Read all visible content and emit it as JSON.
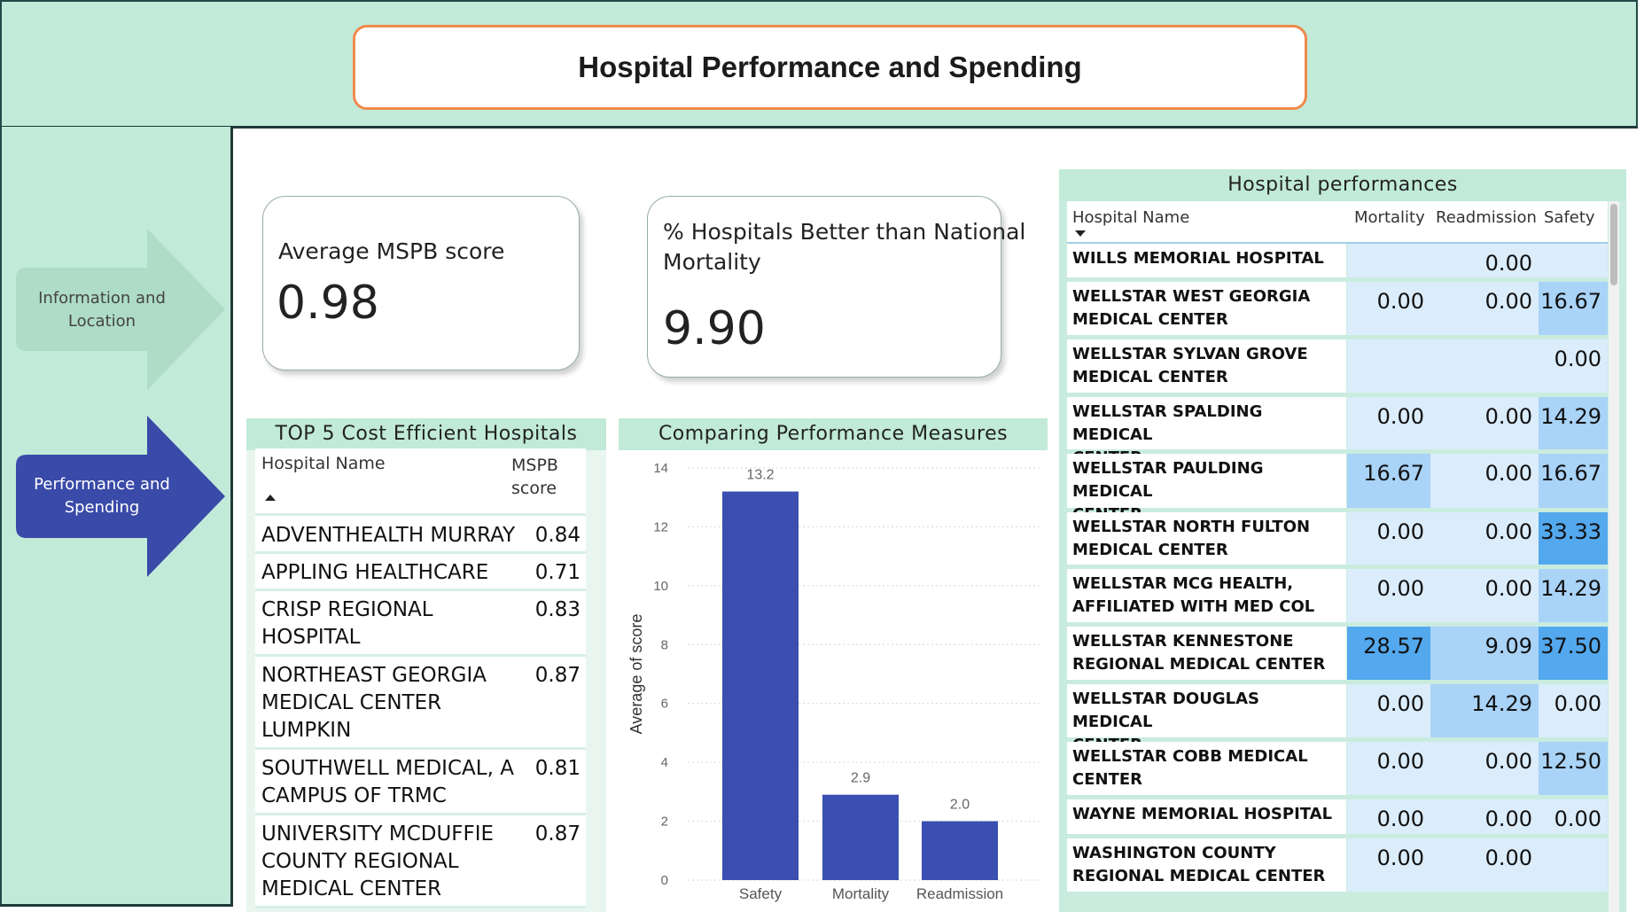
{
  "header": {
    "title": "Hospital Performance and Spending"
  },
  "sidebar": {
    "items": [
      {
        "label_line1": "Information and",
        "label_line2": "Location",
        "active": false
      },
      {
        "label_line1": "Performance and",
        "label_line2": "Spending",
        "active": true
      }
    ]
  },
  "kpis": {
    "mspb": {
      "label": "Average MSPB score",
      "value": "0.98"
    },
    "mortality": {
      "label_line1": "% Hospitals Better than National",
      "label_line2": "Mortality",
      "value": "9.90"
    }
  },
  "top5": {
    "title": "TOP 5 Cost Efficient Hospitals",
    "col_name": "Hospital Name",
    "col_score_line1": "MSPB",
    "col_score_line2": "score",
    "rows": [
      {
        "l1": "ADVENTHEALTH MURRAY",
        "l2": "",
        "l3": "",
        "score": "0.84"
      },
      {
        "l1": "APPLING HEALTHCARE",
        "l2": "",
        "l3": "",
        "score": "0.71"
      },
      {
        "l1": "CRISP REGIONAL",
        "l2": "HOSPITAL",
        "l3": "",
        "score": "0.83"
      },
      {
        "l1": "NORTHEAST GEORGIA",
        "l2": "MEDICAL CENTER",
        "l3": "LUMPKIN",
        "score": "0.87"
      },
      {
        "l1": "SOUTHWELL MEDICAL, A",
        "l2": "CAMPUS OF TRMC",
        "l3": "",
        "score": "0.81"
      },
      {
        "l1": "UNIVERSITY MCDUFFIE",
        "l2": "COUNTY REGIONAL",
        "l3": "MEDICAL CENTER",
        "score": "0.87"
      }
    ]
  },
  "chart_data": {
    "type": "bar",
    "title": "Comparing Performance Measures",
    "categories": [
      "Safety",
      "Mortality",
      "Readmission"
    ],
    "values": [
      13.2,
      2.9,
      2.0
    ],
    "value_labels": [
      "13.2",
      "2.9",
      "2.0"
    ],
    "xlabel": "",
    "ylabel": "Average of score",
    "ylim": [
      0,
      14
    ],
    "yticks": [
      "0",
      "2",
      "4",
      "6",
      "8",
      "10",
      "12",
      "14"
    ],
    "grid": true,
    "bar_color": "#3b4fb0"
  },
  "perf": {
    "title": "Hospital performances",
    "columns": {
      "name": "Hospital Name",
      "c1": "Mortality",
      "c2": "Readmission",
      "c3": "Safety"
    },
    "rows": [
      {
        "l1": "WILLS MEMORIAL HOSPITAL",
        "l2": "",
        "m": "",
        "r": "0.00",
        "s": ""
      },
      {
        "l1": "WELLSTAR WEST GEORGIA",
        "l2": "MEDICAL CENTER",
        "m": "0.00",
        "r": "0.00",
        "s": "16.67"
      },
      {
        "l1": "WELLSTAR SYLVAN GROVE",
        "l2": "MEDICAL CENTER",
        "m": "",
        "r": "",
        "s": "0.00"
      },
      {
        "l1": "WELLSTAR SPALDING MEDICAL",
        "l2": "CENTER",
        "m": "0.00",
        "r": "0.00",
        "s": "14.29"
      },
      {
        "l1": "WELLSTAR PAULDING MEDICAL",
        "l2": "CENTER",
        "m": "16.67",
        "r": "0.00",
        "s": "16.67"
      },
      {
        "l1": "WELLSTAR NORTH FULTON",
        "l2": "MEDICAL CENTER",
        "m": "0.00",
        "r": "0.00",
        "s": "33.33"
      },
      {
        "l1": "WELLSTAR MCG HEALTH,",
        "l2": "AFFILIATED WITH MED COL",
        "m": "0.00",
        "r": "0.00",
        "s": "14.29"
      },
      {
        "l1": "WELLSTAR KENNESTONE",
        "l2": "REGIONAL MEDICAL CENTER",
        "m": "28.57",
        "r": "9.09",
        "s": "37.50"
      },
      {
        "l1": "WELLSTAR DOUGLAS MEDICAL",
        "l2": "CENTER",
        "m": "0.00",
        "r": "14.29",
        "s": "0.00"
      },
      {
        "l1": "WELLSTAR COBB MEDICAL",
        "l2": "CENTER",
        "m": "0.00",
        "r": "0.00",
        "s": "12.50"
      },
      {
        "l1": "WAYNE MEMORIAL HOSPITAL",
        "l2": "",
        "m": "0.00",
        "r": "0.00",
        "s": "0.00"
      },
      {
        "l1": "WASHINGTON COUNTY",
        "l2": "REGIONAL MEDICAL CENTER",
        "m": "0.00",
        "r": "0.00",
        "s": ""
      }
    ]
  },
  "colors": {
    "panel_bg": "#c1ead9",
    "accent_orange": "#f08a4b",
    "nav_active": "#3a4aa8",
    "nav_inactive": "#aedcc7",
    "cell_light": "#dbecfb",
    "cell_mid": "#a9d3f7",
    "cell_strong": "#53a8ee"
  }
}
